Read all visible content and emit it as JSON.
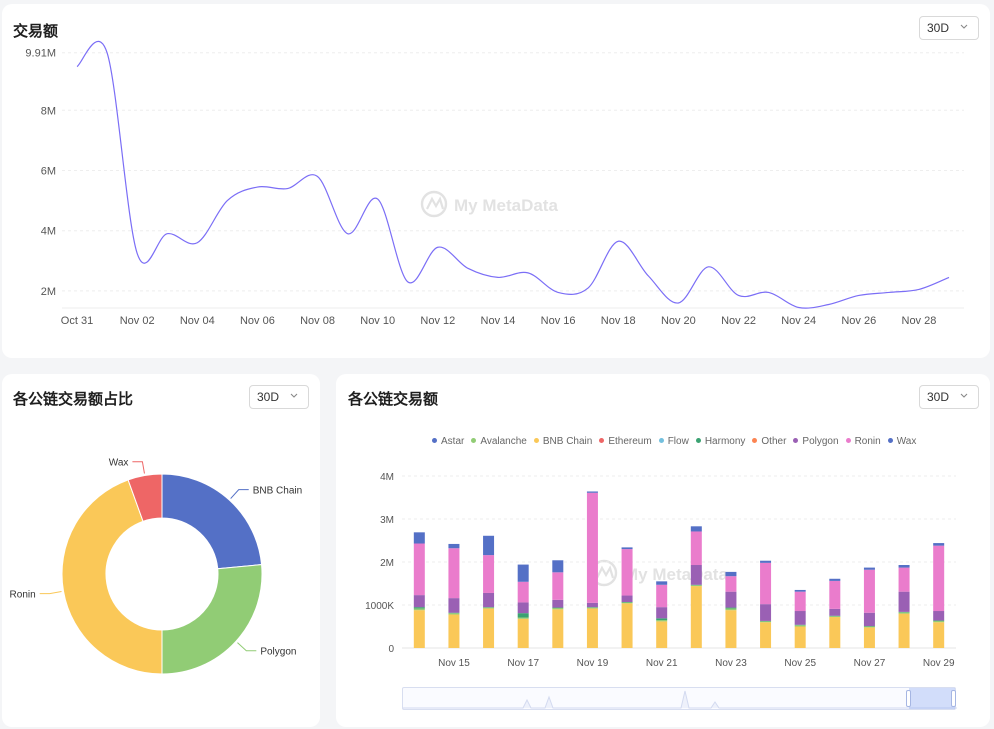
{
  "top_card": {
    "title": "交易额",
    "range": "30D"
  },
  "pie_card": {
    "title": "各公链交易额占比",
    "range": "30D"
  },
  "bar_card": {
    "title": "各公链交易额",
    "range": "30D"
  },
  "watermark": "My MetaData",
  "colors": {
    "line": "#7b6ef6",
    "Astar": "#5470c6",
    "Avalanche": "#91cc75",
    "BNB Chain": "#fac858",
    "Ethereum": "#ee6666",
    "Flow": "#73c0de",
    "Harmony": "#3ba272",
    "Other": "#fc8452",
    "Polygon": "#9a60b4",
    "Ronin": "#ea7ccc",
    "Wax": "#5470c6"
  },
  "chart_data": [
    {
      "type": "line",
      "x": [
        "Oct 31",
        "Nov 01",
        "Nov 02",
        "Nov 03",
        "Nov 04",
        "Nov 05",
        "Nov 06",
        "Nov 07",
        "Nov 08",
        "Nov 09",
        "Nov 10",
        "Nov 11",
        "Nov 12",
        "Nov 13",
        "Nov 14",
        "Nov 15",
        "Nov 16",
        "Nov 17",
        "Nov 18",
        "Nov 19",
        "Nov 20",
        "Nov 21",
        "Nov 22",
        "Nov 23",
        "Nov 24",
        "Nov 25",
        "Nov 26",
        "Nov 27",
        "Nov 28",
        "Nov 29"
      ],
      "values": [
        9.45,
        9.91,
        3.25,
        3.9,
        3.6,
        5.0,
        5.45,
        5.4,
        5.8,
        3.9,
        5.05,
        2.3,
        3.45,
        2.75,
        2.45,
        2.6,
        1.95,
        2.1,
        3.65,
        2.5,
        1.6,
        2.8,
        1.85,
        1.95,
        1.45,
        1.55,
        1.85,
        1.95,
        2.05,
        2.45
      ],
      "x_tick_labels": [
        "Oct 31",
        "Nov 02",
        "Nov 04",
        "Nov 06",
        "Nov 08",
        "Nov 10",
        "Nov 12",
        "Nov 14",
        "Nov 16",
        "Nov 18",
        "Nov 20",
        "Nov 22",
        "Nov 24",
        "Nov 26",
        "Nov 28"
      ],
      "y_tick_labels": [
        "9.91M",
        "8M",
        "6M",
        "4M",
        "2M"
      ],
      "y_ticks": [
        9.91,
        8,
        6,
        4,
        2
      ],
      "ylim": [
        1.4,
        10.2
      ],
      "grid": true
    },
    {
      "type": "pie",
      "donut": true,
      "categories": [
        "BNB Chain",
        "Polygon",
        "Ronin",
        "Wax"
      ],
      "values": [
        23.5,
        26.5,
        44.5,
        5.5
      ],
      "colors": [
        "#5470c6",
        "#91cc75",
        "#fac858",
        "#ee6666"
      ]
    },
    {
      "type": "bar",
      "stacked": true,
      "categories": [
        "Nov 14",
        "Nov 15",
        "Nov 16",
        "Nov 17",
        "Nov 18",
        "Nov 19",
        "Nov 20",
        "Nov 21",
        "Nov 22",
        "Nov 23",
        "Nov 24",
        "Nov 25",
        "Nov 26",
        "Nov 27",
        "Nov 28",
        "Nov 29"
      ],
      "x_tick_labels": [
        "Nov 15",
        "Nov 17",
        "Nov 19",
        "Nov 21",
        "Nov 23",
        "Nov 25",
        "Nov 27",
        "Nov 29"
      ],
      "y_tick_labels": [
        "4M",
        "3M",
        "2M",
        "1000K",
        "0"
      ],
      "y_ticks": [
        4,
        3,
        2,
        1,
        0
      ],
      "ylim": [
        0,
        4
      ],
      "legend": [
        "Astar",
        "Avalanche",
        "BNB Chain",
        "Ethereum",
        "Flow",
        "Harmony",
        "Other",
        "Polygon",
        "Ronin",
        "Wax"
      ],
      "series": [
        {
          "name": "BNB Chain",
          "values": [
            0.88,
            0.78,
            0.92,
            0.68,
            0.9,
            0.92,
            1.04,
            0.62,
            1.44,
            0.88,
            0.6,
            0.5,
            0.72,
            0.48,
            0.8,
            0.6
          ]
        },
        {
          "name": "Avalanche",
          "values": [
            0.04,
            0.03,
            0.02,
            0.03,
            0.03,
            0.02,
            0.02,
            0.03,
            0.02,
            0.04,
            0.02,
            0.03,
            0.02,
            0.02,
            0.03,
            0.03
          ]
        },
        {
          "name": "Harmony",
          "values": [
            0.03,
            0.01,
            0.01,
            0.1,
            0.01,
            0.01,
            0.01,
            0.04,
            0.01,
            0.02,
            0.01,
            0.01,
            0.01,
            0.01,
            0.01,
            0.01
          ]
        },
        {
          "name": "Polygon",
          "values": [
            0.28,
            0.34,
            0.33,
            0.25,
            0.18,
            0.1,
            0.15,
            0.26,
            0.46,
            0.37,
            0.39,
            0.32,
            0.16,
            0.31,
            0.47,
            0.22
          ]
        },
        {
          "name": "Ronin",
          "values": [
            1.2,
            1.16,
            0.88,
            0.48,
            0.64,
            2.56,
            1.08,
            0.52,
            0.78,
            0.36,
            0.96,
            0.45,
            0.65,
            1.0,
            0.56,
            1.52
          ]
        },
        {
          "name": "Astar",
          "values": [
            0.26,
            0.1,
            0.45,
            0.4,
            0.28,
            0.03,
            0.04,
            0.08,
            0.12,
            0.1,
            0.05,
            0.04,
            0.05,
            0.05,
            0.06,
            0.06
          ]
        }
      ]
    }
  ]
}
